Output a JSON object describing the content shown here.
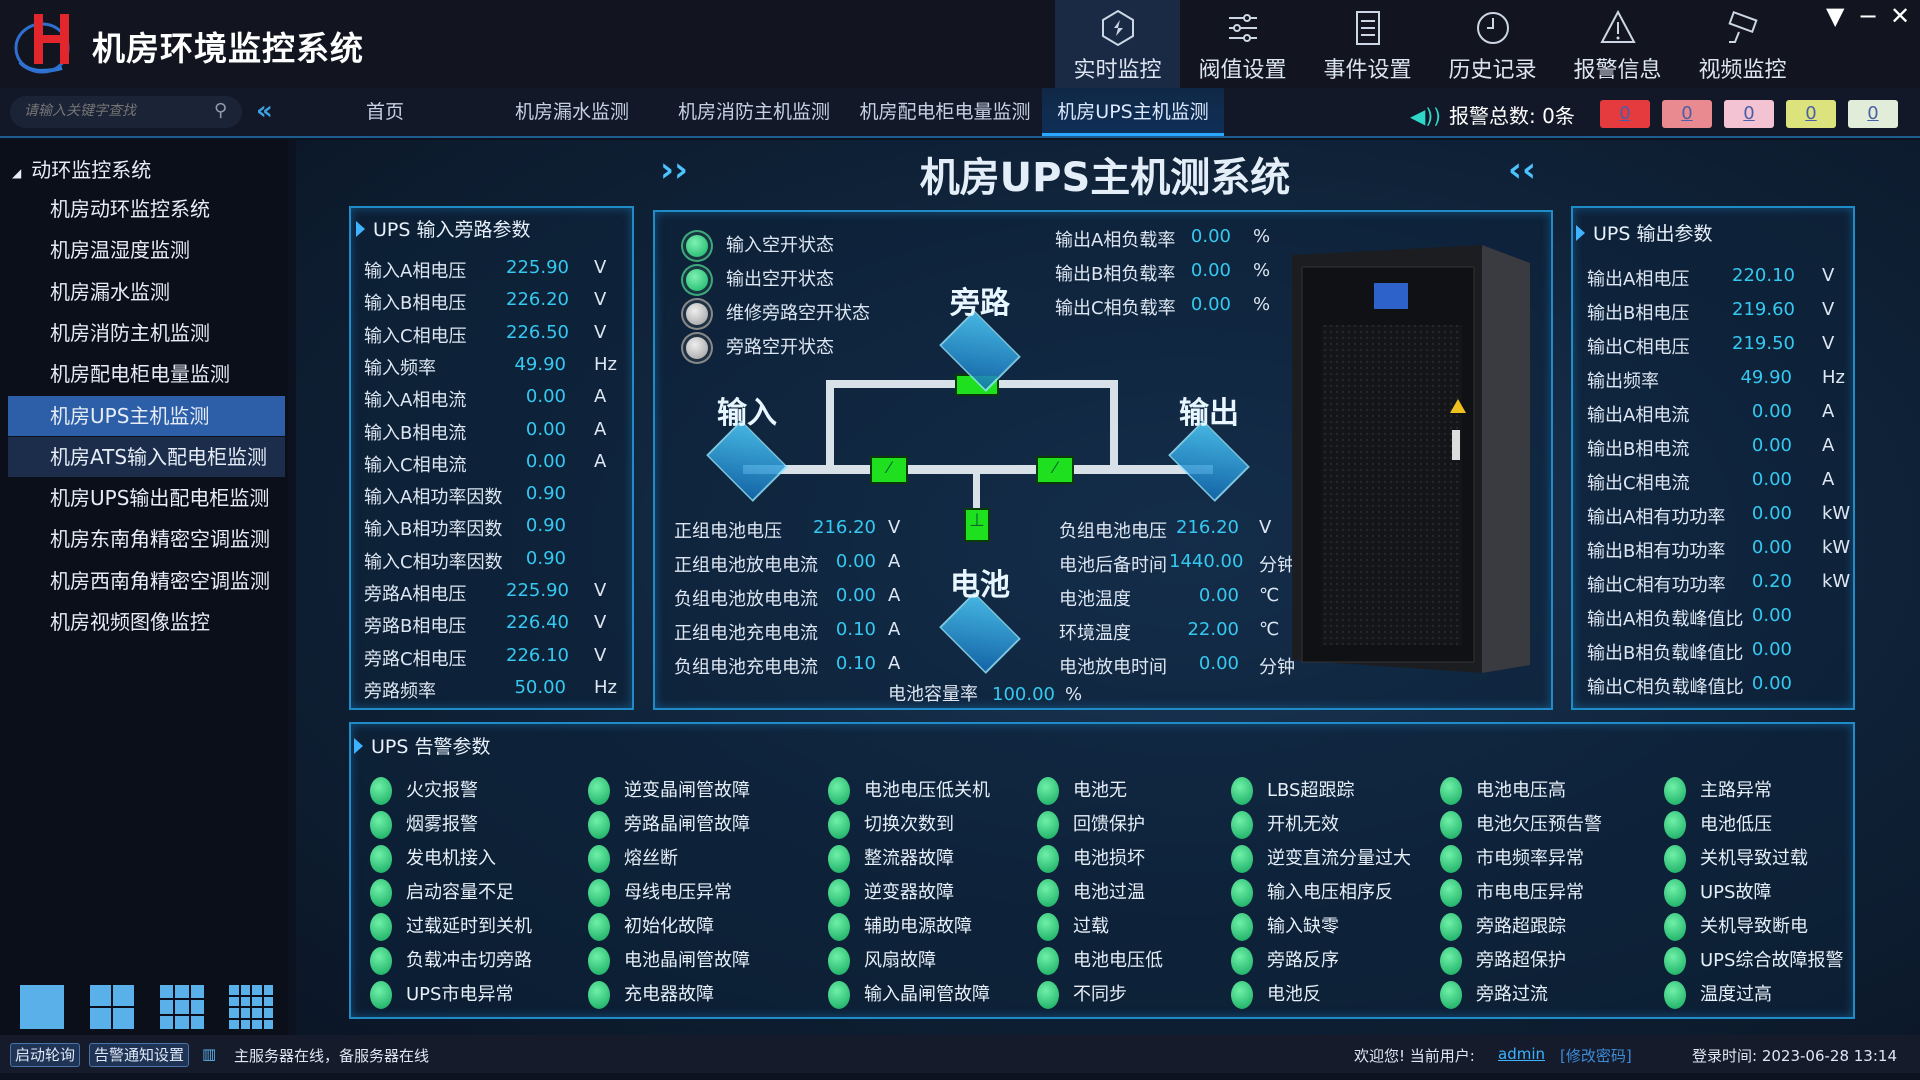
{
  "app": {
    "title": "机房环境监控系统",
    "logo_letter": "H"
  },
  "topnav": [
    {
      "label": "实时监控",
      "icon": "realtime-monitor-icon",
      "active": true
    },
    {
      "label": "阀值设置",
      "icon": "sliders-icon"
    },
    {
      "label": "事件设置",
      "icon": "document-icon"
    },
    {
      "label": "历史记录",
      "icon": "clock-icon"
    },
    {
      "label": "报警信息",
      "icon": "warning-icon"
    },
    {
      "label": "视频监控",
      "icon": "camera-icon"
    }
  ],
  "window": {
    "menu": "▼",
    "minimize": "−",
    "close": "✕"
  },
  "search": {
    "placeholder": "请输入关键字查找",
    "collapse": "«"
  },
  "tabs": [
    {
      "label": "首页"
    },
    {
      "label": "机房漏水监测"
    },
    {
      "label": "机房消防主机监测"
    },
    {
      "label": "机房配电柜电量监测"
    },
    {
      "label": "机房UPS主机监测",
      "active": true
    }
  ],
  "alarm": {
    "label": "报警总数: 0条",
    "counts": [
      {
        "value": "0",
        "color": "#e53b3e"
      },
      {
        "value": "0",
        "color": "#e98a90"
      },
      {
        "value": "0",
        "color": "#f3c3d3"
      },
      {
        "value": "0",
        "color": "#dde37c"
      },
      {
        "value": "0",
        "color": "#e1edd8"
      }
    ]
  },
  "sidebar": {
    "root": "动环监控系统",
    "items": [
      "机房动环监控系统",
      "机房温湿度监测",
      "机房漏水监测",
      "机房消防主机监测",
      "机房配电柜电量监测",
      "机房UPS主机监测",
      "机房ATS输入配电柜监测",
      "机房UPS输出配电柜监测",
      "机房东南角精密空调监测",
      "机房西南角精密空调监测",
      "机房视频图像监控"
    ],
    "active_index": 5
  },
  "page_title": "机房UPS主机测系统",
  "input_panel": {
    "title": "UPS 输入旁路参数",
    "rows": [
      {
        "label": "输入A相电压",
        "value": "225.90",
        "unit": "V"
      },
      {
        "label": "输入B相电压",
        "value": "226.20",
        "unit": "V"
      },
      {
        "label": "输入C相电压",
        "value": "226.50",
        "unit": "V"
      },
      {
        "label": "输入频率",
        "value": "49.90",
        "unit": "Hz"
      },
      {
        "label": "输入A相电流",
        "value": "0.00",
        "unit": "A"
      },
      {
        "label": "输入B相电流",
        "value": "0.00",
        "unit": "A"
      },
      {
        "label": "输入C相电流",
        "value": "0.00",
        "unit": "A"
      },
      {
        "label": "输入A相功率因数",
        "value": "0.90",
        "unit": ""
      },
      {
        "label": "输入B相功率因数",
        "value": "0.90",
        "unit": ""
      },
      {
        "label": "输入C相功率因数",
        "value": "0.90",
        "unit": ""
      },
      {
        "label": "旁路A相电压",
        "value": "225.90",
        "unit": "V"
      },
      {
        "label": "旁路B相电压",
        "value": "226.40",
        "unit": "V"
      },
      {
        "label": "旁路C相电压",
        "value": "226.10",
        "unit": "V"
      },
      {
        "label": "旁路频率",
        "value": "50.00",
        "unit": "Hz"
      }
    ]
  },
  "center": {
    "status": [
      {
        "label": "输入空开状态",
        "state": "green"
      },
      {
        "label": "输出空开状态",
        "state": "green"
      },
      {
        "label": "维修旁路空开状态",
        "state": "gray"
      },
      {
        "label": "旁路空开状态",
        "state": "gray"
      }
    ],
    "load": [
      {
        "label": "输出A相负载率",
        "value": "0.00",
        "unit": "%"
      },
      {
        "label": "输出B相负载率",
        "value": "0.00",
        "unit": "%"
      },
      {
        "label": "输出C相负载率",
        "value": "0.00",
        "unit": "%"
      }
    ],
    "nodes": {
      "bypass": "旁路",
      "input": "输入",
      "output": "输出",
      "battery": "电池"
    },
    "battery_left": [
      {
        "label": "正组电池电压",
        "value": "216.20",
        "unit": "V"
      },
      {
        "label": "正组电池放电电流",
        "value": "0.00",
        "unit": "A"
      },
      {
        "label": "负组电池放电电流",
        "value": "0.00",
        "unit": "A"
      },
      {
        "label": "正组电池充电电流",
        "value": "0.10",
        "unit": "A"
      },
      {
        "label": "负组电池充电电流",
        "value": "0.10",
        "unit": "A"
      }
    ],
    "battery_right": [
      {
        "label": "负组电池电压",
        "value": "216.20",
        "unit": "V"
      },
      {
        "label": "电池后备时间",
        "value": "1440.00",
        "unit": "分钟"
      },
      {
        "label": "电池温度",
        "value": "0.00",
        "unit": "℃"
      },
      {
        "label": "环境温度",
        "value": "22.00",
        "unit": "℃"
      },
      {
        "label": "电池放电时间",
        "value": "0.00",
        "unit": "分钟"
      }
    ],
    "capacity": {
      "label": "电池容量率",
      "value": "100.00",
      "unit": "%"
    }
  },
  "output_panel": {
    "title": "UPS 输出参数",
    "rows": [
      {
        "label": "输出A相电压",
        "value": "220.10",
        "unit": "V"
      },
      {
        "label": "输出B相电压",
        "value": "219.60",
        "unit": "V"
      },
      {
        "label": "输出C相电压",
        "value": "219.50",
        "unit": "V"
      },
      {
        "label": "输出频率",
        "value": "49.90",
        "unit": "Hz"
      },
      {
        "label": "输出A相电流",
        "value": "0.00",
        "unit": "A"
      },
      {
        "label": "输出B相电流",
        "value": "0.00",
        "unit": "A"
      },
      {
        "label": "输出C相电流",
        "value": "0.00",
        "unit": "A"
      },
      {
        "label": "输出A相有功功率",
        "value": "0.00",
        "unit": "kW"
      },
      {
        "label": "输出B相有功功率",
        "value": "0.00",
        "unit": "kW"
      },
      {
        "label": "输出C相有功功率",
        "value": "0.20",
        "unit": "kW"
      },
      {
        "label": "输出A相负载峰值比",
        "value": "0.00",
        "unit": ""
      },
      {
        "label": "输出B相负载峰值比",
        "value": "0.00",
        "unit": ""
      },
      {
        "label": "输出C相负载峰值比",
        "value": "0.00",
        "unit": ""
      }
    ]
  },
  "alarm_panel": {
    "title": "UPS 告警参数",
    "columns": [
      [
        "火灾报警",
        "烟雾报警",
        "发电机接入",
        "启动容量不足",
        "过载延时到关机",
        "负载冲击切旁路",
        "UPS市电异常"
      ],
      [
        "逆变晶闸管故障",
        "旁路晶闸管故障",
        "熔丝断",
        "母线电压异常",
        "初始化故障",
        "电池晶闸管故障",
        "充电器故障"
      ],
      [
        "电池电压低关机",
        "切换次数到",
        "整流器故障",
        "逆变器故障",
        "辅助电源故障",
        "风扇故障",
        "输入晶闸管故障"
      ],
      [
        "电池无",
        "回馈保护",
        "电池损坏",
        "电池过温",
        "过载",
        "电池电压低",
        "不同步"
      ],
      [
        "LBS超跟踪",
        "开机无效",
        "逆变直流分量过大",
        "输入电压相序反",
        "输入缺零",
        "旁路反序",
        "电池反"
      ],
      [
        "电池电压高",
        "电池欠压预告警",
        "市电频率异常",
        "市电电压异常",
        "旁路超跟踪",
        "旁路超保护",
        "旁路过流"
      ],
      [
        "主路异常",
        "电池低压",
        "关机导致过载",
        "UPS故障",
        "关机导致断电",
        "UPS综合故障报警",
        "温度过高"
      ]
    ]
  },
  "statusbar": {
    "poll": "启动轮询",
    "notify": "告警通知设置",
    "server": "主服务器在线，备服务器在线",
    "welcome": "欢迎您! 当前用户:",
    "user": "admin",
    "change_pwd": "[修改密码]",
    "login_time": "登录时间: 2023-06-28 13:14"
  }
}
